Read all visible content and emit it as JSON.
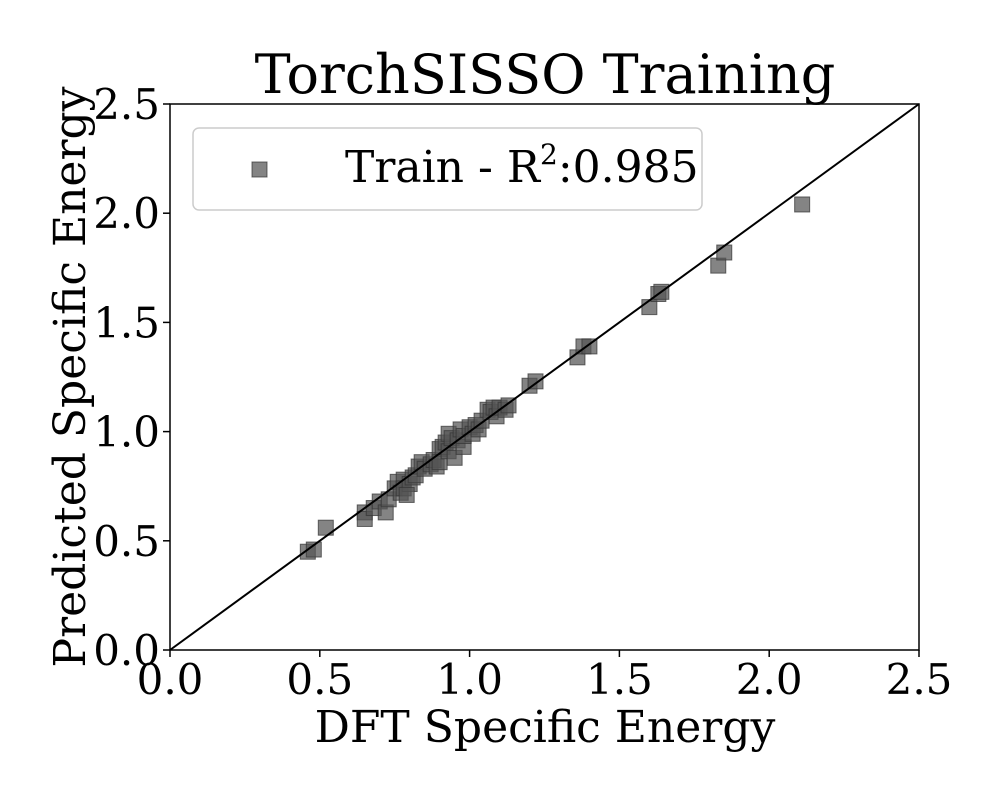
{
  "chart_data": {
    "type": "scatter",
    "title": "TorchSISSO Training",
    "xlabel": "DFT Specific Energy",
    "ylabel": "Predicted Specific Energy",
    "xlim": [
      0.0,
      2.5
    ],
    "ylim": [
      0.0,
      2.5
    ],
    "xticks": [
      "0.0",
      "0.5",
      "1.0",
      "1.5",
      "2.0",
      "2.5"
    ],
    "yticks": [
      "0.0",
      "0.5",
      "1.0",
      "1.5",
      "2.0",
      "2.5"
    ],
    "grid": false,
    "legend_position": "top-left",
    "legend": {
      "label_prefix": "Train - R",
      "superscript": "2",
      "label_suffix": ":0.985"
    },
    "reference_line": {
      "from": [
        0.0,
        0.0
      ],
      "to": [
        2.5,
        2.5
      ],
      "color": "#000000"
    },
    "marker": {
      "shape": "square",
      "color": "#555555",
      "opacity": 0.72
    },
    "series": [
      {
        "name": "Train",
        "points": [
          [
            0.46,
            0.45
          ],
          [
            0.48,
            0.46
          ],
          [
            0.52,
            0.56
          ],
          [
            0.65,
            0.63
          ],
          [
            0.65,
            0.6
          ],
          [
            0.68,
            0.65
          ],
          [
            0.7,
            0.68
          ],
          [
            0.72,
            0.63
          ],
          [
            0.73,
            0.69
          ],
          [
            0.75,
            0.74
          ],
          [
            0.76,
            0.77
          ],
          [
            0.77,
            0.72
          ],
          [
            0.78,
            0.78
          ],
          [
            0.78,
            0.74
          ],
          [
            0.8,
            0.76
          ],
          [
            0.79,
            0.71
          ],
          [
            0.81,
            0.79
          ],
          [
            0.82,
            0.8
          ],
          [
            0.83,
            0.84
          ],
          [
            0.84,
            0.86
          ],
          [
            0.85,
            0.83
          ],
          [
            0.87,
            0.85
          ],
          [
            0.88,
            0.87
          ],
          [
            0.89,
            0.84
          ],
          [
            0.9,
            0.92
          ],
          [
            0.9,
            0.86
          ],
          [
            0.91,
            0.93
          ],
          [
            0.92,
            0.95
          ],
          [
            0.93,
            0.91
          ],
          [
            0.93,
            0.99
          ],
          [
            0.94,
            0.97
          ],
          [
            0.95,
            0.88
          ],
          [
            0.96,
            0.96
          ],
          [
            0.97,
            1.01
          ],
          [
            0.98,
            0.93
          ],
          [
            0.98,
            0.98
          ],
          [
            1.0,
            1.02
          ],
          [
            1.01,
            0.99
          ],
          [
            1.02,
            1.03
          ],
          [
            1.03,
            1.01
          ],
          [
            1.04,
            1.05
          ],
          [
            1.06,
            1.1
          ],
          [
            1.07,
            1.09
          ],
          [
            1.08,
            1.11
          ],
          [
            1.09,
            1.07
          ],
          [
            1.1,
            1.11
          ],
          [
            1.12,
            1.1
          ],
          [
            1.13,
            1.12
          ],
          [
            1.2,
            1.21
          ],
          [
            1.22,
            1.23
          ],
          [
            1.36,
            1.34
          ],
          [
            1.38,
            1.39
          ],
          [
            1.4,
            1.39
          ],
          [
            1.6,
            1.57
          ],
          [
            1.63,
            1.63
          ],
          [
            1.64,
            1.64
          ],
          [
            1.83,
            1.76
          ],
          [
            1.85,
            1.82
          ],
          [
            2.11,
            2.04
          ]
        ]
      }
    ]
  }
}
